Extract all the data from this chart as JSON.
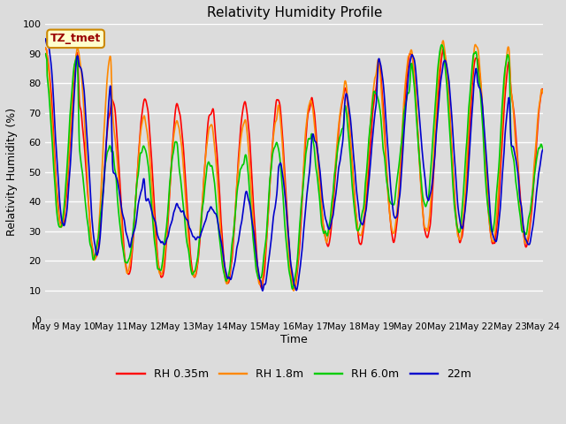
{
  "title": "Relativity Humidity Profile",
  "xlabel": "Time",
  "ylabel": "Relativity Humidity (%)",
  "ylim": [
    0,
    100
  ],
  "background_color": "#dcdcdc",
  "plot_bg_color": "#dcdcdc",
  "grid_color": "#ffffff",
  "annotation_text": "TZ_tmet",
  "annotation_bg": "#ffffcc",
  "annotation_border": "#cc8800",
  "annotation_text_color": "#990000",
  "series_colors": {
    "RH 0.35m": "#ff0000",
    "RH 1.8m": "#ff8800",
    "RH 6.0m": "#00cc00",
    "22m": "#0000cc"
  },
  "legend_labels": [
    "RH 0.35m",
    "RH 1.8m",
    "RH 6.0m",
    "22m"
  ],
  "xtick_labels": [
    "May 9",
    "May 10",
    "May 11",
    "May 12",
    "May 13",
    "May 14",
    "May 15",
    "May 16",
    "May 17",
    "May 18",
    "May 19",
    "May 20",
    "May 21",
    "May 22",
    "May 23",
    "May 24"
  ],
  "line_width": 1.2,
  "figsize": [
    6.4,
    4.8
  ],
  "dpi": 100
}
